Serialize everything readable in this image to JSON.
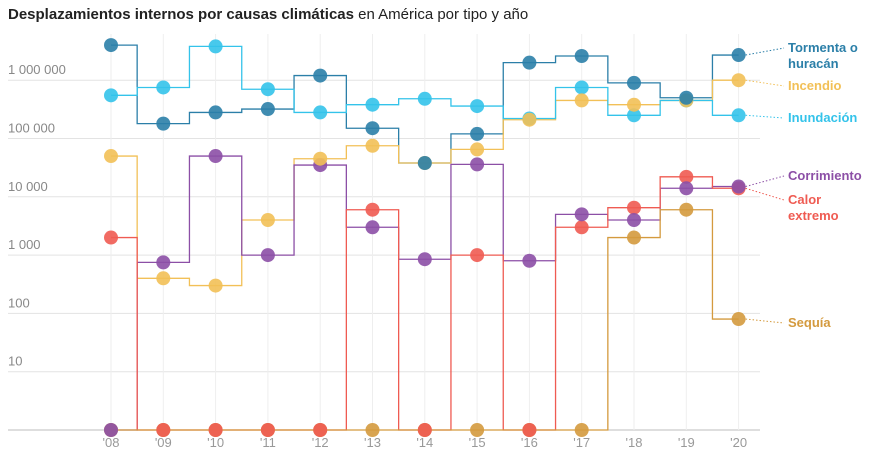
{
  "chart_data": {
    "type": "line",
    "title_bold": "Desplazamientos internos por causas climáticas",
    "title_rest": " en América por tipo y año",
    "y_scale": "log",
    "ylim": [
      1,
      10000000
    ],
    "y_ticks": [
      {
        "value": 10,
        "label": "10"
      },
      {
        "value": 100,
        "label": "100"
      },
      {
        "value": 1000,
        "label": "1 000"
      },
      {
        "value": 10000,
        "label": "10 000"
      },
      {
        "value": 100000,
        "label": "100 000"
      },
      {
        "value": 1000000,
        "label": "1 000 000"
      }
    ],
    "x_ticks": [
      "'08",
      "'09",
      "'10",
      "'11",
      "'12",
      "'13",
      "'14",
      "'15",
      "'16",
      "'17",
      "'18",
      "'19",
      "'20"
    ],
    "years": [
      2008,
      2009,
      2010,
      2011,
      2012,
      2013,
      2014,
      2015,
      2016,
      2017,
      2018,
      2019,
      2020
    ],
    "series": [
      {
        "name": "Tormenta o huracán",
        "label_lines": [
          "Tormenta o",
          "huracán"
        ],
        "color": "#2b7fa8",
        "values": [
          4000000,
          180000,
          280000,
          320000,
          1200000,
          150000,
          38000,
          120000,
          2000000,
          2600000,
          900000,
          500000,
          2700000
        ]
      },
      {
        "name": "Incendio",
        "label_lines": [
          "Incendio"
        ],
        "color": "#f2c057",
        "values": [
          50000,
          400,
          300,
          4000,
          45000,
          75000,
          38000,
          65000,
          210000,
          450000,
          380000,
          450000,
          1000000
        ]
      },
      {
        "name": "Inundación",
        "label_lines": [
          "Inundación"
        ],
        "color": "#34c3ea",
        "values": [
          550000,
          750000,
          3800000,
          700000,
          280000,
          380000,
          480000,
          360000,
          220000,
          750000,
          250000,
          450000,
          250000
        ]
      },
      {
        "name": "Corrimiento",
        "label_lines": [
          "Corrimiento"
        ],
        "color": "#8c4fa6",
        "values": [
          1,
          750,
          50000,
          1000,
          35000,
          3000,
          850,
          36000,
          800,
          5000,
          4000,
          14000,
          15000
        ]
      },
      {
        "name": "Calor extremo",
        "label_lines": [
          "Calor",
          "extremo"
        ],
        "color": "#ef5b52",
        "values": [
          2000,
          1,
          1,
          1,
          1,
          6000,
          1,
          1000,
          1,
          3000,
          6500,
          22000,
          14000
        ]
      },
      {
        "name": "Sequía",
        "label_lines": [
          "Sequía"
        ],
        "color": "#d49a3e",
        "values": [
          1,
          1,
          1,
          1,
          1,
          1,
          1,
          1,
          1,
          1,
          2000,
          6000,
          80
        ]
      }
    ]
  }
}
